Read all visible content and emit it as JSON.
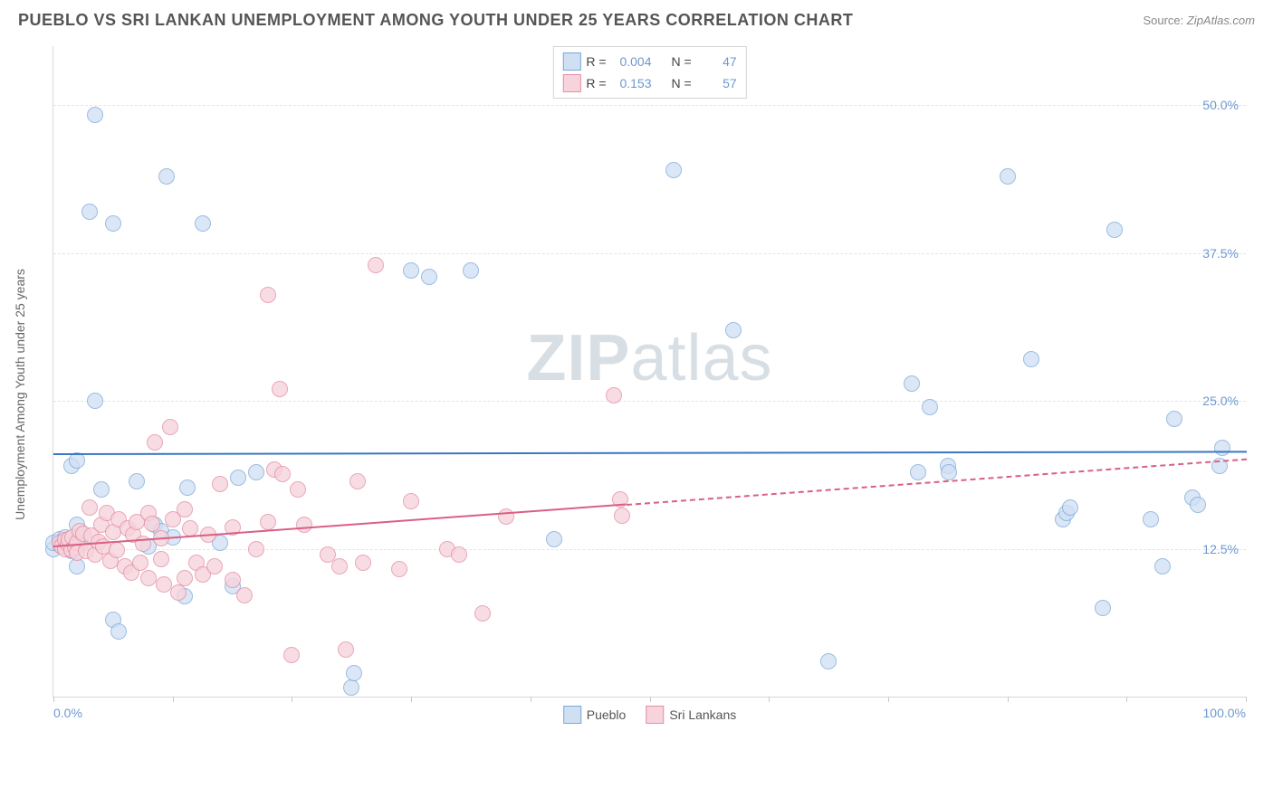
{
  "title": "PUEBLO VS SRI LANKAN UNEMPLOYMENT AMONG YOUTH UNDER 25 YEARS CORRELATION CHART",
  "source_prefix": "Source: ",
  "source_name": "ZipAtlas.com",
  "ylabel": "Unemployment Among Youth under 25 years",
  "watermark_a": "ZIP",
  "watermark_b": "atlas",
  "chart": {
    "type": "scatter",
    "xlim": [
      0,
      100
    ],
    "ylim": [
      0,
      55
    ],
    "yticks": [
      {
        "v": 12.5,
        "label": "12.5%"
      },
      {
        "v": 25.0,
        "label": "25.0%"
      },
      {
        "v": 37.5,
        "label": "37.5%"
      },
      {
        "v": 50.0,
        "label": "50.0%"
      }
    ],
    "xtick_positions": [
      0,
      10,
      20,
      30,
      40,
      50,
      60,
      70,
      80,
      90,
      100
    ],
    "xtick_labels": [
      {
        "v": 0,
        "label": "0.0%",
        "align": "left"
      },
      {
        "v": 100,
        "label": "100.0%",
        "align": "right"
      }
    ],
    "grid_color": "#e4e4e4",
    "axis_color": "#d8d8d8",
    "background_color": "#ffffff",
    "point_radius": 9,
    "series": [
      {
        "name": "Pueblo",
        "fill": "#cfe0f3",
        "stroke": "#7aa7d8",
        "fill_opacity": 0.75,
        "R": "0.004",
        "N": "47",
        "trend": {
          "y_at_x0": 20.6,
          "y_at_x100": 20.8,
          "color": "#3a76c2",
          "solid_until_x": 100
        },
        "points": [
          [
            0,
            12.5
          ],
          [
            0,
            13
          ],
          [
            0.5,
            13.3
          ],
          [
            0.6,
            12.8
          ],
          [
            0.8,
            13.1
          ],
          [
            1,
            12.7
          ],
          [
            1,
            13.5
          ],
          [
            1.5,
            12.3
          ],
          [
            1.5,
            19.5
          ],
          [
            2,
            11
          ],
          [
            2,
            14.5
          ],
          [
            2,
            20
          ],
          [
            2,
            13
          ],
          [
            2.3,
            12.9
          ],
          [
            3,
            41
          ],
          [
            3.5,
            25
          ],
          [
            3.5,
            49.2
          ],
          [
            4,
            17.5
          ],
          [
            5,
            40
          ],
          [
            5,
            6.5
          ],
          [
            5.5,
            5.5
          ],
          [
            7,
            18.2
          ],
          [
            8,
            12.7
          ],
          [
            8.5,
            14.5
          ],
          [
            9,
            14
          ],
          [
            9.5,
            44
          ],
          [
            10,
            13.5
          ],
          [
            11,
            8.5
          ],
          [
            11.2,
            17.7
          ],
          [
            12.5,
            40
          ],
          [
            14,
            13
          ],
          [
            15,
            9.3
          ],
          [
            15.5,
            18.5
          ],
          [
            17,
            19
          ],
          [
            25,
            0.8
          ],
          [
            25.2,
            2
          ],
          [
            30,
            36
          ],
          [
            31.5,
            35.5
          ],
          [
            35,
            36
          ],
          [
            42,
            13.3
          ],
          [
            52,
            44.5
          ],
          [
            57,
            31
          ],
          [
            65,
            3
          ],
          [
            72,
            26.5
          ],
          [
            72.5,
            19
          ],
          [
            73.5,
            24.5
          ],
          [
            75,
            19.5
          ],
          [
            75.1,
            19
          ],
          [
            80,
            44
          ],
          [
            82,
            28.5
          ],
          [
            84.7,
            15
          ],
          [
            85,
            15.5
          ],
          [
            85.3,
            16
          ],
          [
            88,
            7.5
          ],
          [
            89,
            39.5
          ],
          [
            92,
            15
          ],
          [
            93,
            11
          ],
          [
            94,
            23.5
          ],
          [
            95.5,
            16.8
          ],
          [
            96,
            16.2
          ],
          [
            97.8,
            19.5
          ],
          [
            98,
            21
          ]
        ]
      },
      {
        "name": "Sri Lankans",
        "fill": "#f7d3dc",
        "stroke": "#e38fa5",
        "fill_opacity": 0.78,
        "R": "0.153",
        "N": "57",
        "trend": {
          "y_at_x0": 12.8,
          "y_at_x100": 20.2,
          "color": "#da5f83",
          "solid_until_x": 48
        },
        "points": [
          [
            0.5,
            13
          ],
          [
            0.7,
            12.7
          ],
          [
            1,
            12.5
          ],
          [
            1,
            13.2
          ],
          [
            1.2,
            12.9
          ],
          [
            1.3,
            13.3
          ],
          [
            1.5,
            12.4
          ],
          [
            1.6,
            13.5
          ],
          [
            1.8,
            12.6
          ],
          [
            2,
            13
          ],
          [
            2,
            12.2
          ],
          [
            2.2,
            14
          ],
          [
            2.5,
            13.8
          ],
          [
            2.7,
            12.3
          ],
          [
            3,
            16
          ],
          [
            3.2,
            13.6
          ],
          [
            3.5,
            12
          ],
          [
            3.8,
            13.1
          ],
          [
            4,
            14.5
          ],
          [
            4.2,
            12.7
          ],
          [
            4.5,
            15.5
          ],
          [
            4.8,
            11.5
          ],
          [
            5,
            13.9
          ],
          [
            5.3,
            12.4
          ],
          [
            5.5,
            15
          ],
          [
            6,
            11
          ],
          [
            6.2,
            14.2
          ],
          [
            6.5,
            10.5
          ],
          [
            6.7,
            13.7
          ],
          [
            7,
            14.8
          ],
          [
            7.3,
            11.3
          ],
          [
            7.5,
            12.9
          ],
          [
            8,
            10
          ],
          [
            8,
            15.5
          ],
          [
            8.3,
            14.6
          ],
          [
            8.5,
            21.5
          ],
          [
            9,
            11.6
          ],
          [
            9,
            13.4
          ],
          [
            9.3,
            9.5
          ],
          [
            9.8,
            22.8
          ],
          [
            10,
            15
          ],
          [
            10.5,
            8.8
          ],
          [
            11,
            10
          ],
          [
            11,
            15.8
          ],
          [
            11.5,
            14.2
          ],
          [
            12,
            11.3
          ],
          [
            12.5,
            10.3
          ],
          [
            13,
            13.7
          ],
          [
            13.5,
            11
          ],
          [
            14,
            18
          ],
          [
            15,
            14.3
          ],
          [
            15,
            9.9
          ],
          [
            16,
            8.6
          ],
          [
            17,
            12.5
          ],
          [
            18,
            14.8
          ],
          [
            18,
            34
          ],
          [
            18.5,
            19.2
          ],
          [
            19,
            26
          ],
          [
            19.2,
            18.8
          ],
          [
            20,
            3.5
          ],
          [
            20.5,
            17.5
          ],
          [
            21,
            14.5
          ],
          [
            23,
            12
          ],
          [
            24,
            11
          ],
          [
            24.5,
            4
          ],
          [
            25.5,
            18.2
          ],
          [
            26,
            11.3
          ],
          [
            27,
            36.5
          ],
          [
            29,
            10.8
          ],
          [
            30,
            16.5
          ],
          [
            33,
            12.5
          ],
          [
            34,
            12
          ],
          [
            36,
            7
          ],
          [
            38,
            15.2
          ],
          [
            47,
            25.5
          ],
          [
            47.5,
            16.7
          ],
          [
            47.7,
            15.3
          ]
        ]
      }
    ]
  },
  "legend_top": {
    "r_label": "R =",
    "n_label": "N ="
  },
  "legend_bottom_labels": [
    "Pueblo",
    "Sri Lankans"
  ]
}
